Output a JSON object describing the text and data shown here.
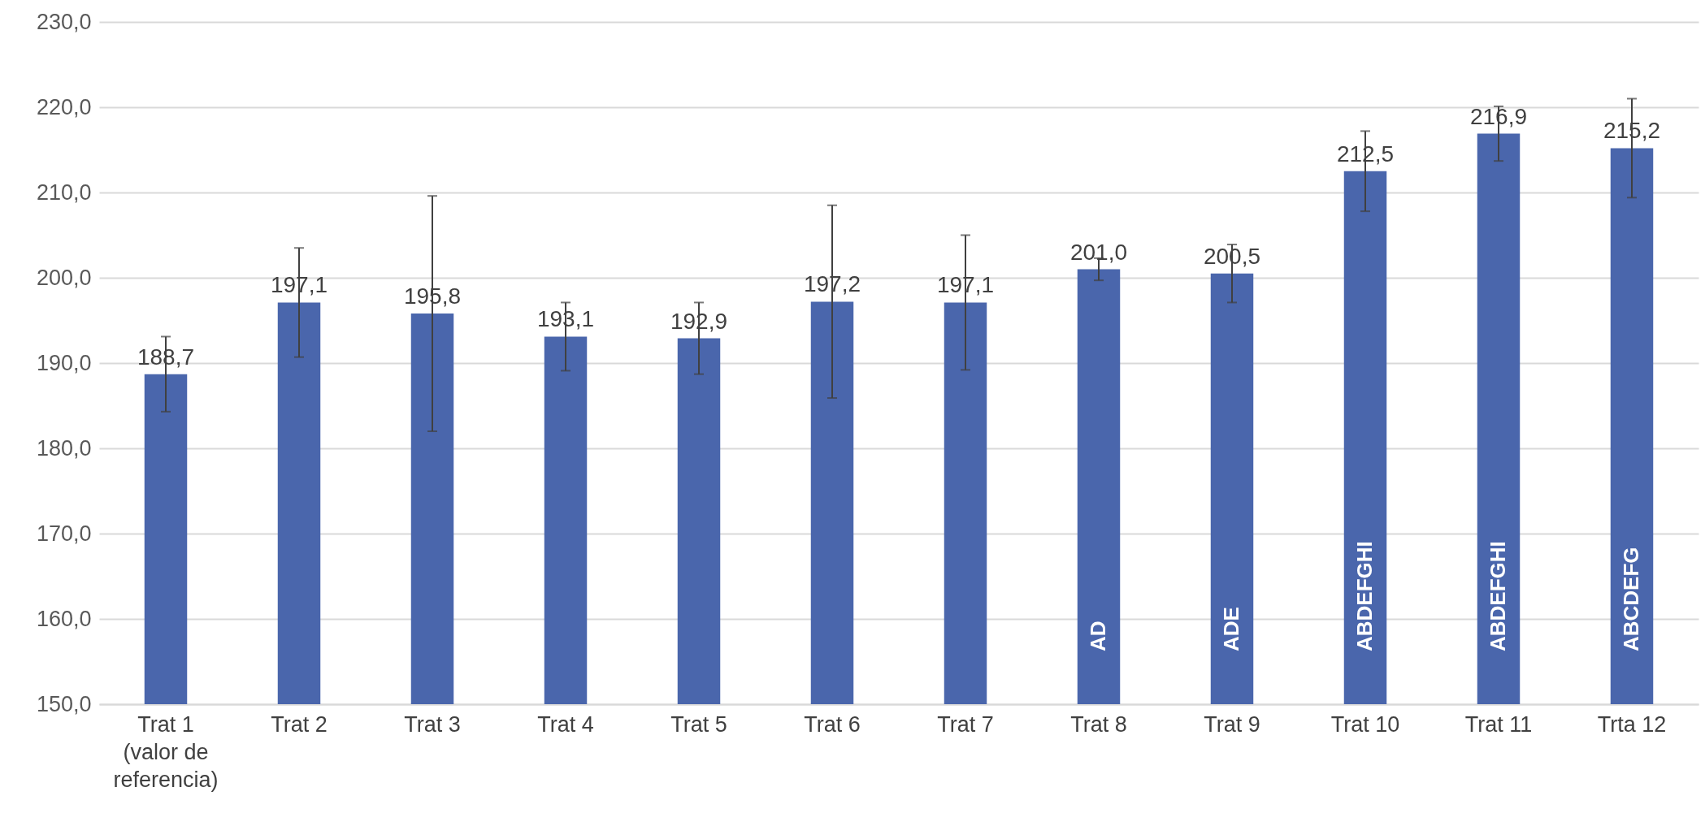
{
  "chart_data": {
    "type": "bar",
    "categories": [
      "Trat 1 (valor de referencia)",
      "Trat 2",
      "Trat 3",
      "Trat 4",
      "Trat 5",
      "Trat 6",
      "Trat 7",
      "Trat 8",
      "Trat 9",
      "Trat 10",
      "Trat 11",
      "Trta 12"
    ],
    "values": [
      188.7,
      197.1,
      195.8,
      193.1,
      192.9,
      197.2,
      197.1,
      201.0,
      200.5,
      212.5,
      216.9,
      215.2
    ],
    "value_labels": [
      "188,7",
      "197,1",
      "195,8",
      "193,1",
      "192,9",
      "197,2",
      "197,1",
      "201,0",
      "200,5",
      "212,5",
      "216,9",
      "215,2"
    ],
    "errors": [
      4.4,
      6.4,
      13.8,
      4.0,
      4.2,
      11.3,
      7.9,
      1.3,
      3.4,
      4.7,
      3.2,
      5.8
    ],
    "color": "#4a66ac",
    "ylim": [
      150,
      230
    ],
    "yticks": [
      {
        "value": 150,
        "label": "150,0"
      },
      {
        "value": 160,
        "label": "160,0"
      },
      {
        "value": 170,
        "label": "170,0"
      },
      {
        "value": 180,
        "label": "180,0"
      },
      {
        "value": 190,
        "label": "190,0"
      },
      {
        "value": 200,
        "label": "200,0"
      },
      {
        "value": 210,
        "label": "210,0"
      },
      {
        "value": 220,
        "label": "220,0"
      },
      {
        "value": 230,
        "label": "230,0"
      }
    ],
    "grid": true,
    "annotations": [
      "AD",
      "ADE",
      "ABDEFGHI",
      "ABDEFGHI",
      "ABCDEFG"
    ]
  }
}
